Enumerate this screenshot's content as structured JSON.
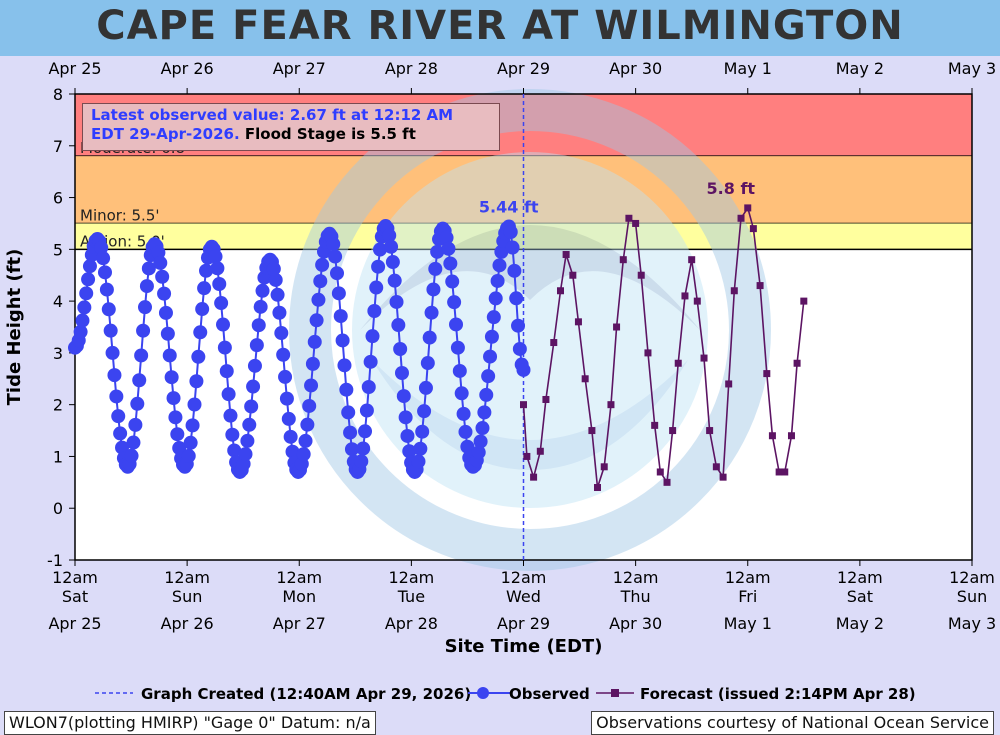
{
  "title": "CAPE FEAR RIVER AT WILMINGTON",
  "info_box": {
    "line1": "Latest observed value: 2.67 ft at 12:12 AM",
    "line2a": "EDT 29-Apr-2026.",
    "line2b": "Flood Stage is 5.5 ft"
  },
  "footer": {
    "left": "WLON7(plotting HMIRP) \"Gage 0\" Datum: n/a",
    "right": "Observations courtesy of National Ocean Service"
  },
  "colors": {
    "observed": "#3b44f0",
    "forecast": "#5c1463",
    "major": "#ff7f7f",
    "moderate": "#ffc07a",
    "action": "#ffff9e",
    "background": "#dcdcf8",
    "title_bar": "#87c1eb"
  },
  "chart_data": {
    "type": "line",
    "xlabel": "Site Time (EDT)",
    "ylabel": "Tide Height (ft)",
    "ylim": [
      -1,
      8
    ],
    "xlim": [
      0,
      8
    ],
    "y_ticks": [
      "-1",
      "0",
      "1",
      "2",
      "3",
      "4",
      "5",
      "6",
      "7",
      "8"
    ],
    "top_ticks": [
      "Apr 25",
      "Apr 26",
      "Apr 27",
      "Apr 28",
      "Apr 29",
      "Apr 30",
      "May  1",
      "May  2",
      "May  3"
    ],
    "bottom_ticks": [
      {
        "time": "12am",
        "day": "Sat",
        "date": "Apr 25"
      },
      {
        "time": "12am",
        "day": "Sun",
        "date": "Apr 26"
      },
      {
        "time": "12am",
        "day": "Mon",
        "date": "Apr 27"
      },
      {
        "time": "12am",
        "day": "Tue",
        "date": "Apr 28"
      },
      {
        "time": "12am",
        "day": "Wed",
        "date": "Apr 29"
      },
      {
        "time": "12am",
        "day": "Thu",
        "date": "Apr 30"
      },
      {
        "time": "12am",
        "day": "Fri",
        "date": "May 1"
      },
      {
        "time": "12am",
        "day": "Sat",
        "date": "May 2"
      },
      {
        "time": "12am",
        "day": "Sun",
        "date": "May 3"
      }
    ],
    "flood_categories": [
      {
        "name": "Moderate: 6.8'",
        "value": 6.8,
        "upper": 8.0,
        "color": "#ff7f7f"
      },
      {
        "name": "Minor: 5.5'",
        "value": 5.5,
        "upper": 6.8,
        "color": "#ffc07a"
      },
      {
        "name": "Action: 5.0'",
        "value": 5.0,
        "upper": 5.5,
        "color": "#ffff9e"
      }
    ],
    "graph_created_x": 4.0,
    "annotations": [
      {
        "text": "5.44 ft",
        "x": 3.87,
        "y": 5.44,
        "color": "#3b44f0"
      },
      {
        "text": "5.8 ft",
        "x": 5.9,
        "y": 5.8,
        "color": "#5c1463"
      }
    ],
    "observed_extrema": [
      [
        0.0,
        3.1
      ],
      [
        0.2,
        5.2
      ],
      [
        0.47,
        0.8
      ],
      [
        0.71,
        5.1
      ],
      [
        0.98,
        0.8
      ],
      [
        1.22,
        5.05
      ],
      [
        1.47,
        0.7
      ],
      [
        1.74,
        4.8
      ],
      [
        1.99,
        0.7
      ],
      [
        2.27,
        5.3
      ],
      [
        2.52,
        0.7
      ],
      [
        2.77,
        5.45
      ],
      [
        3.03,
        0.7
      ],
      [
        3.28,
        5.4
      ],
      [
        3.55,
        0.8
      ],
      [
        3.87,
        5.44
      ],
      [
        4.0,
        2.67
      ]
    ],
    "series": [
      {
        "name": "Observed",
        "color": "#3b44f0",
        "marker": "circle",
        "x": [],
        "y": []
      },
      {
        "name": "Forecast (issued 2:14PM Apr 28)",
        "color": "#5c1463",
        "marker": "square",
        "x": [
          4.0,
          4.03,
          4.09,
          4.15,
          4.2,
          4.27,
          4.33,
          4.38,
          4.44,
          4.49,
          4.55,
          4.61,
          4.66,
          4.72,
          4.78,
          4.83,
          4.89,
          4.94,
          5.0,
          5.05,
          5.11,
          5.17,
          5.22,
          5.28,
          5.33,
          5.38,
          5.44,
          5.5,
          5.55,
          5.61,
          5.66,
          5.72,
          5.78,
          5.83,
          5.88,
          5.94,
          6.0,
          6.05,
          6.11,
          6.17,
          6.22,
          6.28,
          6.33,
          6.39,
          6.44,
          6.5
        ],
        "y": [
          2.0,
          1.0,
          0.6,
          1.1,
          2.1,
          3.2,
          4.2,
          4.9,
          4.5,
          3.6,
          2.5,
          1.5,
          0.4,
          0.8,
          2.0,
          3.5,
          4.8,
          5.6,
          5.5,
          4.5,
          3.0,
          1.6,
          0.7,
          0.5,
          1.5,
          2.8,
          4.1,
          4.8,
          4.0,
          2.9,
          1.5,
          0.8,
          0.6,
          2.4,
          4.2,
          5.6,
          5.8,
          5.4,
          4.3,
          2.6,
          1.4,
          0.7,
          0.7,
          1.4,
          2.8,
          4.0
        ]
      }
    ],
    "legend": [
      {
        "label": "Graph Created (12:40AM Apr 29, 2026)",
        "style": "dashed"
      },
      {
        "label": "Observed",
        "style": "circle"
      },
      {
        "label": "Forecast (issued 2:14PM Apr 28)",
        "style": "square"
      }
    ],
    "grid": false
  }
}
